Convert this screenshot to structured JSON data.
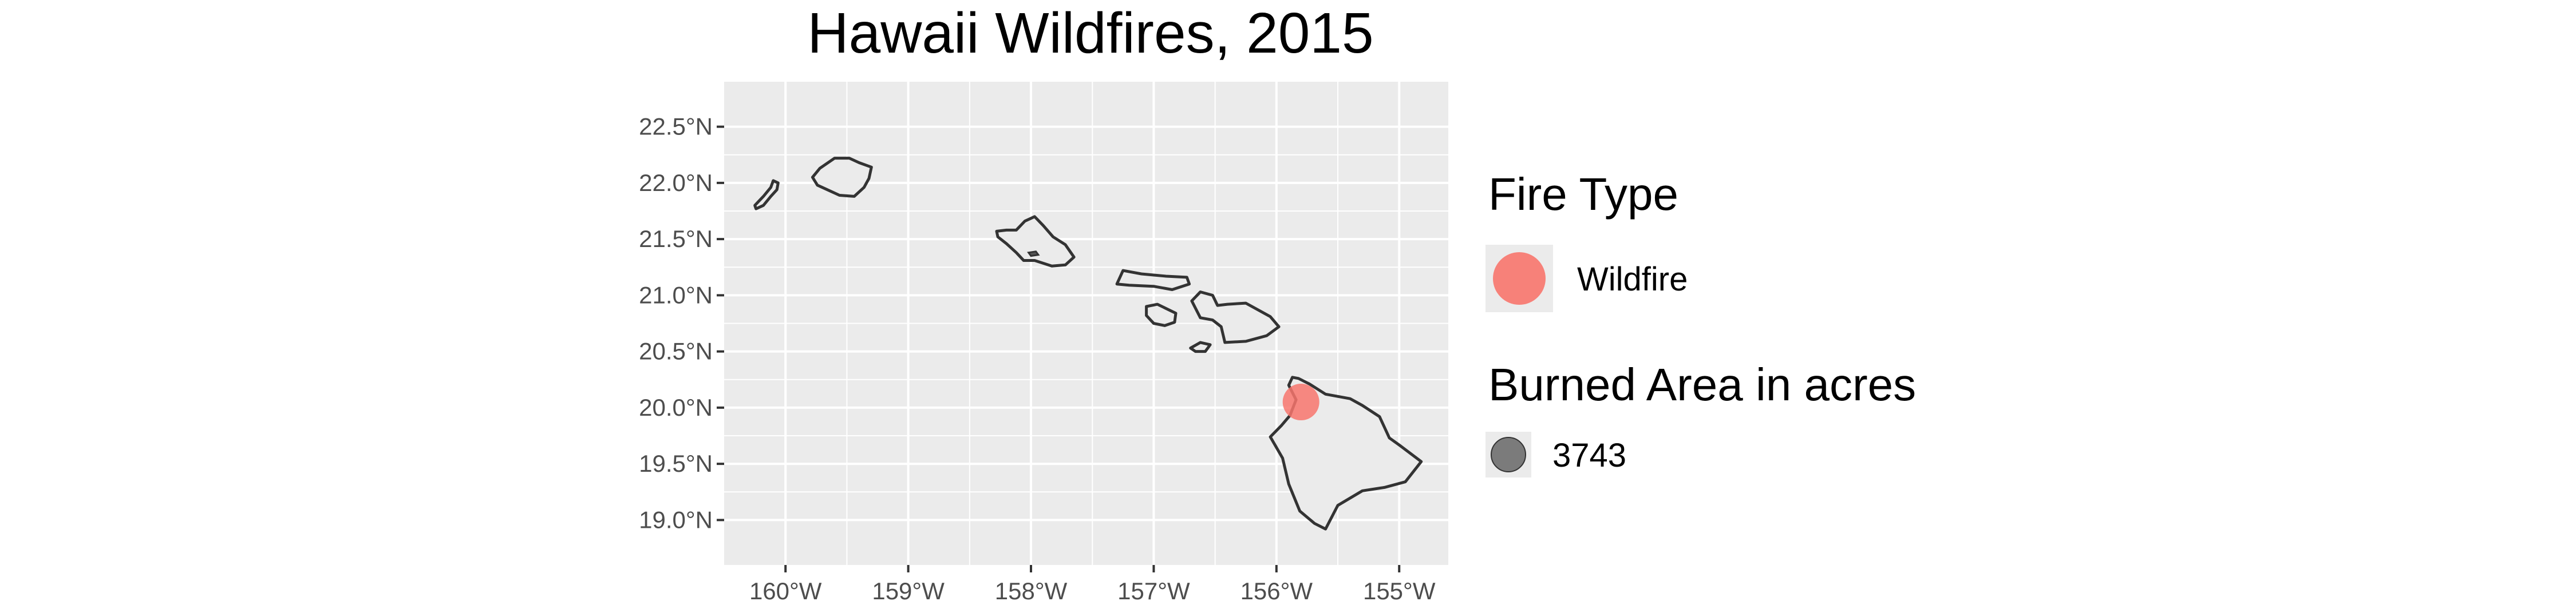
{
  "title": "Hawaii Wildfires, 2015",
  "chart_data": {
    "type": "map-scatter",
    "title": "Hawaii Wildfires, 2015",
    "xlim": [
      -160.5,
      -154.6
    ],
    "ylim": [
      18.6,
      22.9
    ],
    "grid": true,
    "x_ticks": [
      {
        "value": -160,
        "label": "160°W"
      },
      {
        "value": -159,
        "label": "159°W"
      },
      {
        "value": -158,
        "label": "158°W"
      },
      {
        "value": -157,
        "label": "157°W"
      },
      {
        "value": -156,
        "label": "156°W"
      },
      {
        "value": -155,
        "label": "155°W"
      }
    ],
    "y_ticks": [
      {
        "value": 19.0,
        "label": "19.0°N"
      },
      {
        "value": 19.5,
        "label": "19.5°N"
      },
      {
        "value": 20.0,
        "label": "20.0°N"
      },
      {
        "value": 20.5,
        "label": "20.5°N"
      },
      {
        "value": 21.0,
        "label": "21.0°N"
      },
      {
        "value": 21.5,
        "label": "21.5°N"
      },
      {
        "value": 22.0,
        "label": "22.0°N"
      },
      {
        "value": 22.5,
        "label": "22.5°N"
      }
    ],
    "points": [
      {
        "lon": -155.8,
        "lat": 20.05,
        "fire_type": "Wildfire",
        "burned_area_acres": 3743
      }
    ],
    "colors": {
      "panel_bg": "#ebebeb",
      "grid": "#ffffff",
      "land_fill": "#ebebeb",
      "land_stroke": "#333333",
      "wildfire": "#f8766d",
      "size_key": "#555555",
      "text": "#000000",
      "axis_text": "#4d4d4d"
    }
  },
  "legend": {
    "fire_type": {
      "title": "Fire Type",
      "items": [
        {
          "label": "Wildfire",
          "color": "#f8766d"
        }
      ]
    },
    "burned_area": {
      "title": "Burned Area in acres",
      "items": [
        {
          "label": "3743"
        }
      ]
    }
  }
}
